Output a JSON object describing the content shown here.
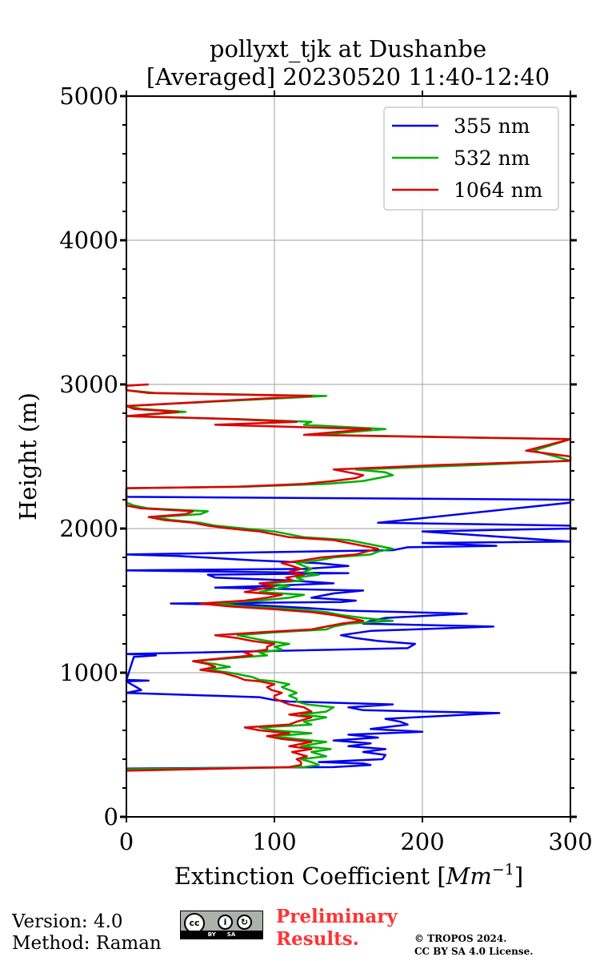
{
  "chart_data": {
    "type": "line",
    "title": [
      "pollyxt_tjk at Dushanbe",
      "[Averaged] 20230520 11:40-12:40"
    ],
    "xlabel": "Extinction Coefficient [",
    "xlabel_unit": "Mm",
    "xlabel_exp": "−1",
    "xlabel_close": "]",
    "ylabel": "Height (m)",
    "xlim": [
      0,
      300
    ],
    "ylim": [
      0,
      5000
    ],
    "xticks": [
      0,
      100,
      200,
      300
    ],
    "yticks": [
      0,
      1000,
      2000,
      3000,
      4000,
      5000
    ],
    "grid": true,
    "legend_position": "top-right",
    "series": [
      {
        "name": "355 nm",
        "color": "#0000ee",
        "points": [
          [
            0,
            335
          ],
          [
            140,
            345
          ],
          [
            165,
            360
          ],
          [
            160,
            370
          ],
          [
            130,
            380
          ],
          [
            173,
            400
          ],
          [
            175,
            430
          ],
          [
            160,
            450
          ],
          [
            175,
            470
          ],
          [
            150,
            490
          ],
          [
            165,
            510
          ],
          [
            140,
            530
          ],
          [
            170,
            550
          ],
          [
            150,
            570
          ],
          [
            200,
            590
          ],
          [
            165,
            610
          ],
          [
            190,
            640
          ],
          [
            185,
            660
          ],
          [
            175,
            680
          ],
          [
            252,
            720
          ],
          [
            160,
            740
          ],
          [
            150,
            760
          ],
          [
            180,
            780
          ],
          [
            110,
            800
          ],
          [
            100,
            810
          ],
          [
            90,
            830
          ],
          [
            60,
            840
          ],
          [
            0,
            860
          ],
          [
            5,
            870
          ],
          [
            10,
            880
          ],
          [
            0,
            940
          ],
          [
            15,
            945
          ],
          [
            0,
            950
          ],
          [
            5,
            1110
          ],
          [
            20,
            1120
          ],
          [
            0,
            1130
          ],
          [
            190,
            1170
          ],
          [
            195,
            1200
          ],
          [
            170,
            1220
          ],
          [
            155,
            1240
          ],
          [
            145,
            1260
          ],
          [
            165,
            1290
          ],
          [
            248,
            1320
          ],
          [
            160,
            1340
          ],
          [
            165,
            1360
          ],
          [
            175,
            1380
          ],
          [
            230,
            1410
          ],
          [
            150,
            1430
          ],
          [
            120,
            1450
          ],
          [
            85,
            1470
          ],
          [
            30,
            1480
          ],
          [
            145,
            1490
          ],
          [
            155,
            1500
          ],
          [
            125,
            1520
          ],
          [
            140,
            1550
          ],
          [
            160,
            1570
          ],
          [
            60,
            1590
          ],
          [
            90,
            1600
          ],
          [
            140,
            1620
          ],
          [
            110,
            1640
          ],
          [
            60,
            1660
          ],
          [
            55,
            1680
          ],
          [
            150,
            1690
          ],
          [
            0,
            1710
          ],
          [
            120,
            1720
          ],
          [
            150,
            1740
          ],
          [
            130,
            1760
          ],
          [
            85,
            1780
          ],
          [
            35,
            1810
          ],
          [
            0,
            1820
          ],
          [
            180,
            1850
          ],
          [
            190,
            1870
          ],
          [
            250,
            1880
          ],
          [
            200,
            1900
          ],
          [
            300,
            1910
          ],
          [
            200,
            1980
          ],
          [
            250,
            1990
          ],
          [
            300,
            2000
          ],
          [
            300,
            2020
          ],
          [
            240,
            2030
          ],
          [
            170,
            2040
          ],
          [
            300,
            2180
          ],
          [
            300,
            2200
          ],
          [
            0,
            2220
          ],
          [
            0,
            2240
          ]
        ]
      },
      {
        "name": "532 nm",
        "color": "#00b000",
        "points": [
          [
            0,
            330
          ],
          [
            120,
            345
          ],
          [
            130,
            360
          ],
          [
            125,
            380
          ],
          [
            118,
            400
          ],
          [
            135,
            420
          ],
          [
            125,
            450
          ],
          [
            138,
            470
          ],
          [
            118,
            490
          ],
          [
            135,
            520
          ],
          [
            115,
            540
          ],
          [
            100,
            560
          ],
          [
            125,
            580
          ],
          [
            100,
            600
          ],
          [
            90,
            620
          ],
          [
            125,
            640
          ],
          [
            120,
            660
          ],
          [
            135,
            690
          ],
          [
            118,
            710
          ],
          [
            135,
            730
          ],
          [
            140,
            760
          ],
          [
            122,
            780
          ],
          [
            115,
            800
          ],
          [
            115,
            820
          ],
          [
            110,
            840
          ],
          [
            115,
            860
          ],
          [
            110,
            880
          ],
          [
            105,
            900
          ],
          [
            110,
            920
          ],
          [
            100,
            940
          ],
          [
            90,
            950
          ],
          [
            85,
            970
          ],
          [
            70,
            1000
          ],
          [
            55,
            1020
          ],
          [
            70,
            1040
          ],
          [
            60,
            1060
          ],
          [
            45,
            1080
          ],
          [
            70,
            1100
          ],
          [
            95,
            1120
          ],
          [
            90,
            1140
          ],
          [
            105,
            1160
          ],
          [
            100,
            1180
          ],
          [
            110,
            1200
          ],
          [
            95,
            1220
          ],
          [
            85,
            1240
          ],
          [
            75,
            1260
          ],
          [
            100,
            1280
          ],
          [
            135,
            1300
          ],
          [
            140,
            1320
          ],
          [
            150,
            1340
          ],
          [
            180,
            1360
          ],
          [
            160,
            1380
          ],
          [
            145,
            1400
          ],
          [
            135,
            1420
          ],
          [
            115,
            1440
          ],
          [
            80,
            1460
          ],
          [
            60,
            1480
          ],
          [
            90,
            1500
          ],
          [
            110,
            1520
          ],
          [
            120,
            1540
          ],
          [
            90,
            1560
          ],
          [
            100,
            1580
          ],
          [
            110,
            1600
          ],
          [
            95,
            1620
          ],
          [
            120,
            1640
          ],
          [
            115,
            1660
          ],
          [
            130,
            1680
          ],
          [
            120,
            1700
          ],
          [
            125,
            1720
          ],
          [
            120,
            1740
          ],
          [
            115,
            1760
          ],
          [
            130,
            1780
          ],
          [
            140,
            1800
          ],
          [
            165,
            1820
          ],
          [
            170,
            1840
          ],
          [
            180,
            1860
          ],
          [
            170,
            1880
          ],
          [
            160,
            1900
          ],
          [
            150,
            1920
          ],
          [
            120,
            1940
          ],
          [
            110,
            1960
          ],
          [
            100,
            1980
          ],
          [
            80,
            2000
          ],
          [
            60,
            2020
          ],
          [
            50,
            2040
          ],
          [
            30,
            2060
          ],
          [
            20,
            2080
          ],
          [
            50,
            2100
          ],
          [
            55,
            2120
          ],
          [
            15,
            2140
          ],
          [
            5,
            2160
          ],
          [
            0,
            2180
          ],
          [
            0,
            2280
          ],
          [
            80,
            2290
          ],
          [
            135,
            2310
          ],
          [
            160,
            2330
          ],
          [
            170,
            2350
          ],
          [
            180,
            2370
          ],
          [
            175,
            2390
          ],
          [
            155,
            2410
          ],
          [
            235,
            2440
          ],
          [
            300,
            2470
          ],
          [
            290,
            2500
          ],
          [
            275,
            2540
          ],
          [
            300,
            2620
          ],
          [
            130,
            2650
          ],
          [
            175,
            2690
          ],
          [
            120,
            2720
          ],
          [
            125,
            2740
          ],
          [
            75,
            2760
          ],
          [
            0,
            2780
          ],
          [
            40,
            2810
          ],
          [
            10,
            2830
          ],
          [
            0,
            2850
          ],
          [
            135,
            2920
          ],
          [
            20,
            2940
          ],
          [
            0,
            2960
          ],
          [
            0,
            3000
          ]
        ]
      },
      {
        "name": "1064 nm",
        "color": "#dd0000",
        "points": [
          [
            0,
            320
          ],
          [
            110,
            345
          ],
          [
            118,
            360
          ],
          [
            118,
            380
          ],
          [
            115,
            400
          ],
          [
            122,
            420
          ],
          [
            112,
            450
          ],
          [
            125,
            470
          ],
          [
            110,
            490
          ],
          [
            125,
            520
          ],
          [
            105,
            540
          ],
          [
            95,
            560
          ],
          [
            110,
            580
          ],
          [
            90,
            600
          ],
          [
            80,
            620
          ],
          [
            110,
            640
          ],
          [
            115,
            660
          ],
          [
            125,
            690
          ],
          [
            110,
            710
          ],
          [
            125,
            730
          ],
          [
            120,
            760
          ],
          [
            110,
            780
          ],
          [
            105,
            800
          ],
          [
            100,
            820
          ],
          [
            100,
            840
          ],
          [
            105,
            860
          ],
          [
            98,
            880
          ],
          [
            95,
            900
          ],
          [
            100,
            920
          ],
          [
            90,
            940
          ],
          [
            80,
            950
          ],
          [
            75,
            970
          ],
          [
            65,
            1000
          ],
          [
            50,
            1020
          ],
          [
            60,
            1040
          ],
          [
            55,
            1060
          ],
          [
            45,
            1080
          ],
          [
            65,
            1100
          ],
          [
            85,
            1120
          ],
          [
            80,
            1140
          ],
          [
            95,
            1160
          ],
          [
            95,
            1180
          ],
          [
            100,
            1200
          ],
          [
            85,
            1220
          ],
          [
            75,
            1240
          ],
          [
            60,
            1260
          ],
          [
            90,
            1280
          ],
          [
            125,
            1300
          ],
          [
            135,
            1320
          ],
          [
            145,
            1340
          ],
          [
            160,
            1360
          ],
          [
            150,
            1380
          ],
          [
            140,
            1400
          ],
          [
            125,
            1420
          ],
          [
            100,
            1440
          ],
          [
            70,
            1460
          ],
          [
            50,
            1480
          ],
          [
            80,
            1500
          ],
          [
            95,
            1520
          ],
          [
            105,
            1540
          ],
          [
            80,
            1560
          ],
          [
            90,
            1580
          ],
          [
            100,
            1600
          ],
          [
            90,
            1620
          ],
          [
            112,
            1640
          ],
          [
            108,
            1660
          ],
          [
            120,
            1680
          ],
          [
            110,
            1700
          ],
          [
            118,
            1720
          ],
          [
            112,
            1740
          ],
          [
            105,
            1760
          ],
          [
            120,
            1780
          ],
          [
            132,
            1800
          ],
          [
            155,
            1820
          ],
          [
            162,
            1840
          ],
          [
            170,
            1860
          ],
          [
            160,
            1880
          ],
          [
            150,
            1900
          ],
          [
            140,
            1920
          ],
          [
            110,
            1940
          ],
          [
            100,
            1960
          ],
          [
            90,
            1980
          ],
          [
            70,
            2000
          ],
          [
            55,
            2020
          ],
          [
            45,
            2040
          ],
          [
            25,
            2060
          ],
          [
            15,
            2080
          ],
          [
            40,
            2100
          ],
          [
            45,
            2120
          ],
          [
            10,
            2140
          ],
          [
            0,
            2160
          ],
          [
            0,
            2280
          ],
          [
            75,
            2290
          ],
          [
            120,
            2310
          ],
          [
            140,
            2330
          ],
          [
            155,
            2350
          ],
          [
            160,
            2370
          ],
          [
            150,
            2390
          ],
          [
            140,
            2410
          ],
          [
            210,
            2440
          ],
          [
            300,
            2470
          ],
          [
            300,
            2500
          ],
          [
            270,
            2540
          ],
          [
            300,
            2620
          ],
          [
            120,
            2650
          ],
          [
            165,
            2690
          ],
          [
            60,
            2720
          ],
          [
            115,
            2740
          ],
          [
            70,
            2760
          ],
          [
            0,
            2780
          ],
          [
            35,
            2810
          ],
          [
            5,
            2830
          ],
          [
            0,
            2850
          ],
          [
            125,
            2920
          ],
          [
            15,
            2940
          ],
          [
            0,
            2960
          ],
          [
            0,
            2990
          ],
          [
            15,
            3000
          ]
        ]
      }
    ]
  },
  "footer": {
    "version": "Version: 4.0",
    "method": "Method: Raman",
    "cc_label": "cc",
    "by_label": "BY",
    "sa_label": "SA",
    "preliminary_line1": "Preliminary",
    "preliminary_line2": "Results.",
    "copyright_line1": "© TROPOS 2024.",
    "copyright_line2": "CC BY SA 4.0 License."
  }
}
